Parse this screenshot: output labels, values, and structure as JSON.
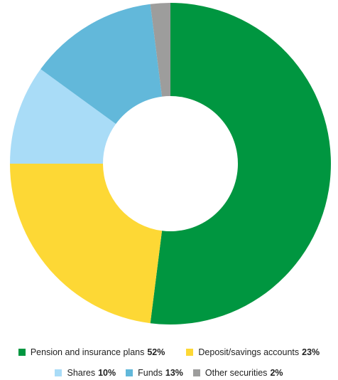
{
  "chart_data": {
    "type": "pie",
    "donut": true,
    "categories": [
      "Pension and insurance plans",
      "Deposit/savings accounts",
      "Shares",
      "Funds",
      "Other securities"
    ],
    "values": [
      52,
      23,
      10,
      13,
      2
    ],
    "value_labels": [
      "52%",
      "23%",
      "10%",
      "13%",
      "2%"
    ],
    "colors": [
      "#009640",
      "#FDD835",
      "#A9DCF7",
      "#62B8DA",
      "#9D9D9C"
    ],
    "title": "",
    "legend_position": "bottom",
    "start": "12 o'clock",
    "direction": "clockwise"
  }
}
